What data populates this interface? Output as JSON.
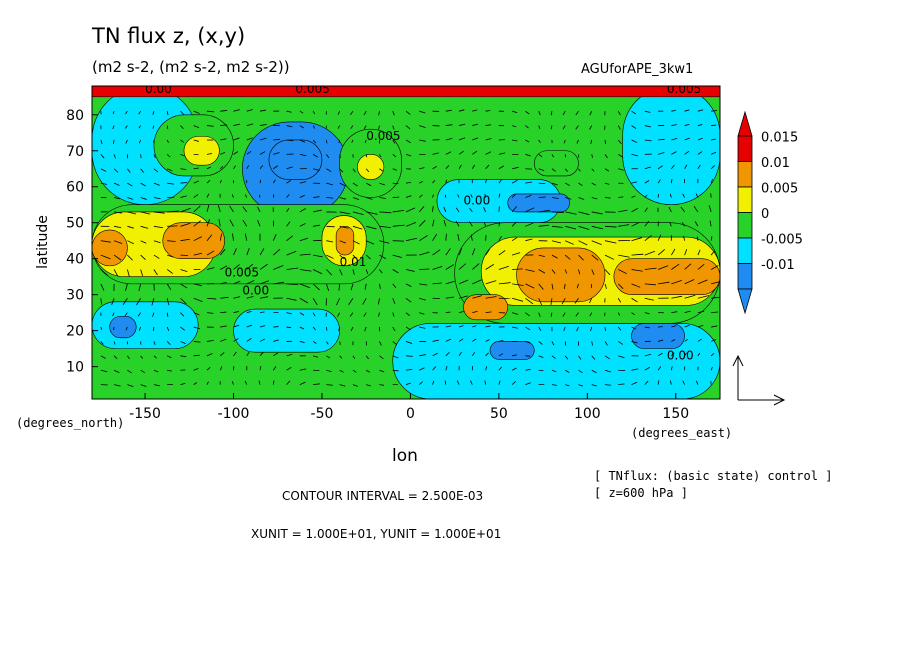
{
  "header": {
    "title": "TN flux z, (x,y)",
    "subtitle": "(m2 s-2, (m2 s-2, m2 s-2))",
    "run_name": "AGUforAPE_3kw1"
  },
  "footer": {
    "contour_interval": "CONTOUR INTERVAL = 2.500E-03",
    "units_line": "XUNIT = 1.000E+01, YUNIT = 1.000E+01",
    "note_1": "[ TNflux: (basic state) control ]",
    "note_2": "[ z=600 hPa ]"
  },
  "chart_data": {
    "type": "heatmap",
    "title": "TN flux z, (x,y)",
    "xlabel": "lon",
    "ylabel": "latitude",
    "x_unit_label": "(degrees_east)",
    "y_unit_label": "(degrees_north)",
    "xlim": [
      -180,
      175
    ],
    "ylim": [
      1,
      88
    ],
    "xticks": [
      -150,
      -100,
      -50,
      0,
      50,
      100,
      150
    ],
    "yticks": [
      10,
      20,
      30,
      40,
      50,
      60,
      70,
      80
    ],
    "xtick_labels": [
      "-150",
      "-100",
      "-50",
      "0",
      "50",
      "100",
      "150"
    ],
    "ytick_labels": [
      "10",
      "20",
      "30",
      "40",
      "50",
      "60",
      "70",
      "80"
    ],
    "colorbar": {
      "levels": [
        -0.015,
        -0.01,
        -0.005,
        0,
        0.005,
        0.01,
        0.015,
        0.02
      ],
      "colors": [
        "#1e8cf0",
        "#00e0ff",
        "#28d228",
        "#f0f000",
        "#f09600",
        "#e60000"
      ],
      "labels": [
        "0.015",
        "0.01",
        "0.005",
        "0",
        "-0.005",
        "-0.01"
      ],
      "lower_extend_color": "#1e8cf0",
      "upper_extend_color": "#e60000"
    },
    "contour_labels": [
      {
        "text": "0.005",
        "lon": -25,
        "lat": 73
      },
      {
        "text": "0.005",
        "lon": -105,
        "lat": 35
      },
      {
        "text": "0.01",
        "lon": -40,
        "lat": 38
      },
      {
        "text": "0.00",
        "lon": -95,
        "lat": 30
      },
      {
        "text": "0.00",
        "lon": 30,
        "lat": 55
      },
      {
        "text": "0.00",
        "lon": 145,
        "lat": 12
      },
      {
        "text": "0.00",
        "lon": -150,
        "lat": 86
      },
      {
        "text": "0.005",
        "lon": -65,
        "lat": 86
      },
      {
        "text": "0.005",
        "lon": 145,
        "lat": 86
      }
    ],
    "field_regions": [
      {
        "lon0": -180,
        "lon1": 175,
        "lat0": 1,
        "lat1": 88,
        "level": 0.0025
      },
      {
        "lon0": -180,
        "lon1": -120,
        "lat0": 55,
        "lat1": 88,
        "level": -0.0025
      },
      {
        "lon0": -145,
        "lon1": -100,
        "lat0": 63,
        "lat1": 80,
        "level": 0.0025
      },
      {
        "lon0": -128,
        "lon1": -108,
        "lat0": 66,
        "lat1": 74,
        "level": 0.0075
      },
      {
        "lon0": -95,
        "lon1": -35,
        "lat0": 52,
        "lat1": 78,
        "level": -0.0075
      },
      {
        "lon0": -80,
        "lon1": -50,
        "lat0": 62,
        "lat1": 73,
        "level": -0.0125
      },
      {
        "lon0": -40,
        "lon1": -5,
        "lat0": 57,
        "lat1": 76,
        "level": 0.0025
      },
      {
        "lon0": -30,
        "lon1": -15,
        "lat0": 62,
        "lat1": 69,
        "level": 0.0075
      },
      {
        "lon0": 15,
        "lon1": 85,
        "lat0": 50,
        "lat1": 62,
        "level": -0.0025
      },
      {
        "lon0": 55,
        "lon1": 90,
        "lat0": 53,
        "lat1": 58,
        "level": -0.0075
      },
      {
        "lon0": 70,
        "lon1": 95,
        "lat0": 63,
        "lat1": 70,
        "level": 0.0025
      },
      {
        "lon0": 120,
        "lon1": 175,
        "lat0": 55,
        "lat1": 88,
        "level": -0.0025
      },
      {
        "lon0": -180,
        "lon1": -15,
        "lat0": 33,
        "lat1": 55,
        "level": 0.0025
      },
      {
        "lon0": -180,
        "lon1": -110,
        "lat0": 35,
        "lat1": 53,
        "level": 0.0075
      },
      {
        "lon0": -140,
        "lon1": -105,
        "lat0": 40,
        "lat1": 50,
        "level": 0.0125
      },
      {
        "lon0": -180,
        "lon1": -160,
        "lat0": 38,
        "lat1": 48,
        "level": 0.0125
      },
      {
        "lon0": -50,
        "lon1": -25,
        "lat0": 38,
        "lat1": 52,
        "level": 0.0075
      },
      {
        "lon0": -42,
        "lon1": -32,
        "lat0": 41,
        "lat1": 49,
        "level": 0.0125
      },
      {
        "lon0": 25,
        "lon1": 175,
        "lat0": 22,
        "lat1": 50,
        "level": 0.0025
      },
      {
        "lon0": 40,
        "lon1": 175,
        "lat0": 27,
        "lat1": 46,
        "level": 0.0075
      },
      {
        "lon0": 60,
        "lon1": 110,
        "lat0": 28,
        "lat1": 43,
        "level": 0.0125
      },
      {
        "lon0": 115,
        "lon1": 175,
        "lat0": 30,
        "lat1": 40,
        "level": 0.0125
      },
      {
        "lon0": 30,
        "lon1": 55,
        "lat0": 23,
        "lat1": 30,
        "level": 0.0125
      },
      {
        "lon0": -180,
        "lon1": -120,
        "lat0": 15,
        "lat1": 28,
        "level": -0.0025
      },
      {
        "lon0": -170,
        "lon1": -155,
        "lat0": 18,
        "lat1": 24,
        "level": -0.0075
      },
      {
        "lon0": -100,
        "lon1": -40,
        "lat0": 14,
        "lat1": 26,
        "level": -0.0025
      },
      {
        "lon0": -10,
        "lon1": 175,
        "lat0": 1,
        "lat1": 22,
        "level": -0.0025
      },
      {
        "lon0": 125,
        "lon1": 155,
        "lat0": 15,
        "lat1": 22,
        "level": -0.0075
      },
      {
        "lon0": 45,
        "lon1": 70,
        "lat0": 12,
        "lat1": 17,
        "level": -0.0075
      },
      {
        "lon0": -180,
        "lon1": 175,
        "lat0": 85,
        "lat1": 88,
        "level": 0.0175
      }
    ],
    "reference_vector": {
      "x_unit": 10,
      "y_unit": 10
    }
  }
}
